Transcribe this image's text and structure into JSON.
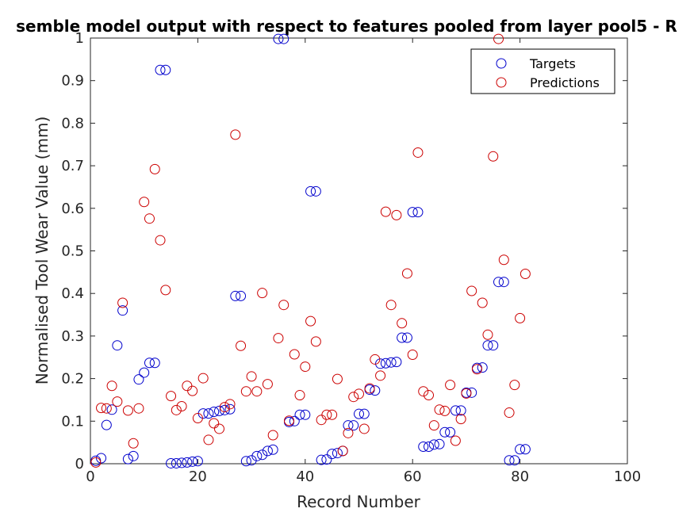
{
  "chart_data": {
    "type": "scatter",
    "title": "semble model output with respect to features pooled from layer pool5 - R",
    "xlabel": "Record Number",
    "ylabel": "Normalised Tool Wear Value (mm)",
    "xlim": [
      0,
      100
    ],
    "ylim": [
      0,
      1
    ],
    "xticks": [
      0,
      20,
      40,
      60,
      80,
      100
    ],
    "yticks": [
      0,
      0.1,
      0.2,
      0.3,
      0.4,
      0.5,
      0.6,
      0.7,
      0.8,
      0.9,
      1
    ],
    "legend_position": "top-right",
    "grid": false,
    "series": [
      {
        "name": "Targets",
        "color": "#0000cc",
        "x": [
          1,
          2,
          3,
          4,
          5,
          6,
          7,
          8,
          9,
          10,
          11,
          12,
          13,
          14,
          15,
          16,
          17,
          18,
          19,
          20,
          21,
          22,
          23,
          24,
          25,
          26,
          27,
          28,
          29,
          30,
          31,
          32,
          33,
          34,
          35,
          36,
          37,
          38,
          39,
          40,
          41,
          42,
          43,
          44,
          45,
          46,
          47,
          48,
          49,
          50,
          51,
          52,
          53,
          54,
          55,
          56,
          57,
          58,
          59,
          60,
          61,
          62,
          63,
          64,
          65,
          66,
          67,
          68,
          69,
          70,
          71,
          72,
          73,
          74,
          75,
          76,
          77,
          78,
          79,
          80,
          81
        ],
        "y": [
          0.007,
          0.013,
          0.091,
          0.127,
          0.278,
          0.36,
          0.011,
          0.018,
          0.198,
          0.214,
          0.237,
          0.237,
          0.925,
          0.925,
          0.001,
          0.001,
          0.002,
          0.003,
          0.005,
          0.006,
          0.118,
          0.118,
          0.122,
          0.124,
          0.126,
          0.128,
          0.394,
          0.394,
          0.006,
          0.008,
          0.018,
          0.021,
          0.03,
          0.033,
          0.998,
          0.998,
          0.098,
          0.1,
          0.115,
          0.115,
          0.64,
          0.64,
          0.009,
          0.01,
          0.023,
          0.025,
          0.03,
          0.09,
          0.09,
          0.117,
          0.117,
          0.174,
          0.172,
          0.235,
          0.236,
          0.238,
          0.239,
          0.296,
          0.296,
          0.591,
          0.591,
          0.04,
          0.04,
          0.045,
          0.046,
          0.074,
          0.074,
          0.125,
          0.125,
          0.167,
          0.167,
          0.225,
          0.226,
          0.278,
          0.278,
          0.427,
          0.427,
          0.008,
          0.008,
          0.034,
          0.034
        ]
      },
      {
        "name": "Predictions",
        "color": "#cc0000",
        "x": [
          1,
          2,
          3,
          4,
          5,
          6,
          7,
          8,
          9,
          10,
          11,
          12,
          13,
          14,
          15,
          16,
          17,
          18,
          19,
          20,
          21,
          22,
          23,
          24,
          25,
          26,
          27,
          28,
          29,
          30,
          31,
          32,
          33,
          34,
          35,
          36,
          37,
          38,
          39,
          40,
          41,
          42,
          43,
          44,
          45,
          46,
          47,
          48,
          49,
          50,
          51,
          52,
          53,
          54,
          55,
          56,
          57,
          58,
          59,
          60,
          61,
          62,
          63,
          64,
          65,
          66,
          67,
          68,
          69,
          70,
          71,
          72,
          73,
          74,
          75,
          76,
          77,
          78,
          79,
          80,
          81
        ],
        "y": [
          0.003,
          0.131,
          0.13,
          0.183,
          0.146,
          0.378,
          0.125,
          0.048,
          0.13,
          0.615,
          0.576,
          0.692,
          0.525,
          0.408,
          0.159,
          0.126,
          0.135,
          0.183,
          0.171,
          0.107,
          0.201,
          0.056,
          0.095,
          0.082,
          0.133,
          0.14,
          0.773,
          0.277,
          0.17,
          0.205,
          0.17,
          0.401,
          0.187,
          0.067,
          0.295,
          0.373,
          0.101,
          0.257,
          0.161,
          0.228,
          0.335,
          0.287,
          0.103,
          0.115,
          0.115,
          0.199,
          0.03,
          0.072,
          0.157,
          0.164,
          0.082,
          0.177,
          0.245,
          0.207,
          0.592,
          0.373,
          0.584,
          0.33,
          0.447,
          0.256,
          0.731,
          0.17,
          0.161,
          0.09,
          0.127,
          0.124,
          0.185,
          0.054,
          0.105,
          0.165,
          0.406,
          0.222,
          0.378,
          0.303,
          0.722,
          0.998,
          0.479,
          0.12,
          0.185,
          0.342,
          0.446
        ]
      }
    ]
  }
}
